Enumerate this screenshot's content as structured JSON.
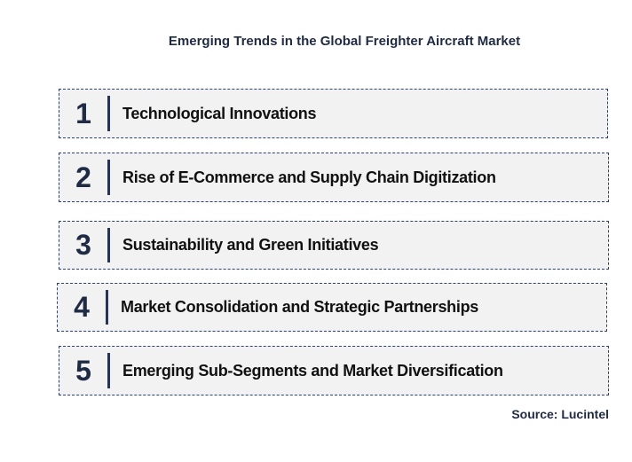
{
  "title": "Emerging Trends in the Global Freighter Aircraft Market",
  "items": [
    {
      "number": 1,
      "label": "Technological Innovations"
    },
    {
      "number": 2,
      "label": "Rise of E-Commerce and Supply Chain Digitization"
    },
    {
      "number": 3,
      "label": "Sustainability and Green Initiatives"
    },
    {
      "number": 4,
      "label": "Market Consolidation and Strategic Partnerships"
    },
    {
      "number": 5,
      "label": "Emerging Sub-Segments and Market Diversification"
    }
  ],
  "source": "Source: Lucintel"
}
